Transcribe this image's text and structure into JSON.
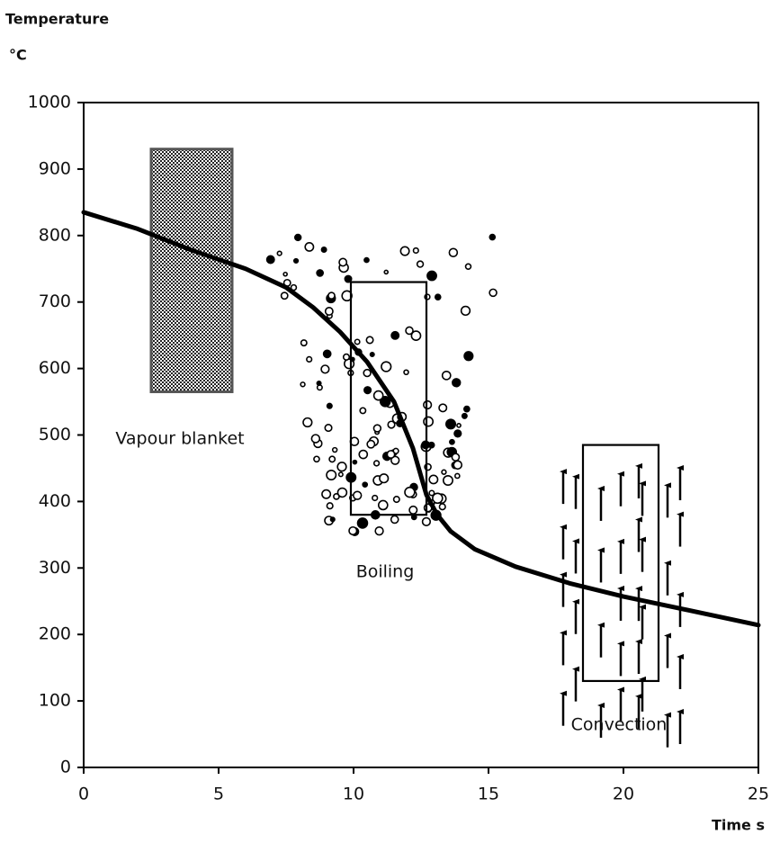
{
  "chart_data": {
    "type": "line",
    "y_label": "Temperature",
    "y_unit": "°C",
    "x_label": "Time s",
    "x": [
      0,
      2,
      4,
      6,
      7.5,
      8.5,
      9.5,
      10.5,
      11.5,
      12.2,
      12.7,
      13.1,
      13.6,
      14.5,
      16,
      18,
      20,
      22,
      25
    ],
    "values": [
      835,
      810,
      778,
      750,
      722,
      692,
      655,
      610,
      550,
      480,
      410,
      380,
      355,
      328,
      302,
      277,
      257,
      240,
      214
    ],
    "color": "#000000",
    "xlim": [
      0,
      25
    ],
    "xticks": [
      0,
      5,
      10,
      15,
      20,
      25
    ],
    "ylim": [
      0,
      1000
    ],
    "yticks": [
      0,
      100,
      200,
      300,
      400,
      500,
      600,
      700,
      800,
      900,
      1000
    ],
    "regions": [
      {
        "label": "Vapour blanket",
        "x": [
          2.5,
          5.5
        ],
        "y": [
          565,
          930
        ]
      },
      {
        "label": "Boiling",
        "x": [
          9.9,
          12.7
        ],
        "y": [
          380,
          730
        ]
      },
      {
        "label": "Convection",
        "x": [
          18.5,
          21.3
        ],
        "y": [
          130,
          485
        ]
      }
    ]
  }
}
